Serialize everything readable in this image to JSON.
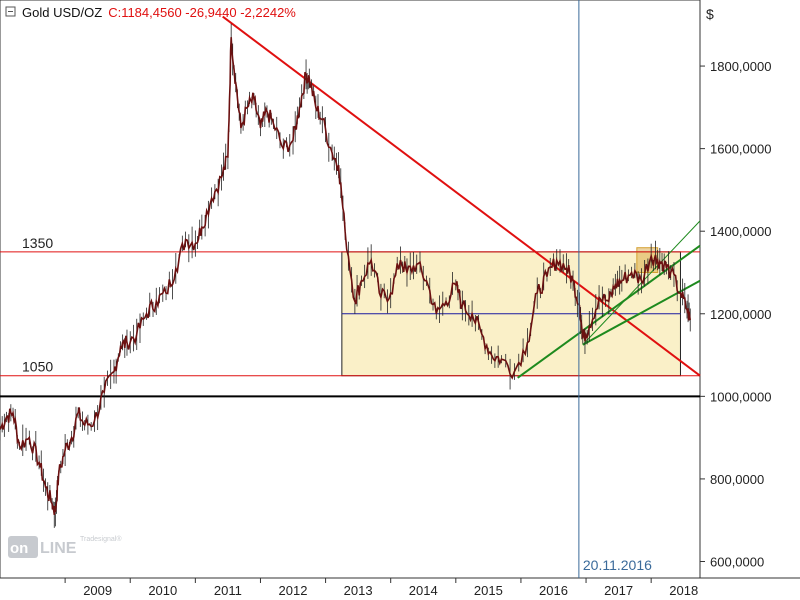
{
  "header": {
    "instrument": "Gold USD/OZ",
    "quote": "C:1184,4560 -26,9440 -2,2242%",
    "colors": {
      "instrument": "#111111",
      "quote": "#e01010"
    }
  },
  "watermark": {
    "text": "Tradesignal online"
  },
  "chart_data": {
    "type": "line",
    "title": "Gold USD/OZ",
    "currency_unit": "$",
    "y_axis": {
      "ylim": [
        560,
        1960
      ],
      "ticks": [
        600,
        800,
        1000,
        1200,
        1400,
        1600,
        1800
      ],
      "tick_labels": [
        "600,0000",
        "800,0000",
        "1000,0000",
        "1200,0000",
        "1400,0000",
        "1600,0000",
        "1800,0000"
      ],
      "position": "right"
    },
    "x_axis": {
      "range": [
        2008.0,
        2018.75
      ],
      "tick_labels": [
        "2009",
        "2010",
        "2011",
        "2012",
        "2013",
        "2014",
        "2015",
        "2016",
        "2017",
        "2018"
      ],
      "tick_years": [
        2009,
        2010,
        2011,
        2012,
        2013,
        2014,
        2015,
        2016,
        2017,
        2018
      ]
    },
    "series": [
      {
        "color": "#6b1010",
        "x": [
          2008.0,
          2008.1,
          2008.2,
          2008.3,
          2008.45,
          2008.6,
          2008.7,
          2008.8,
          2008.85,
          2008.9,
          2009.0,
          2009.1,
          2009.2,
          2009.3,
          2009.45,
          2009.6,
          2009.75,
          2009.85,
          2009.95,
          2010.1,
          2010.25,
          2010.4,
          2010.55,
          2010.7,
          2010.85,
          2011.0,
          2011.1,
          2011.25,
          2011.4,
          2011.5,
          2011.55,
          2011.62,
          2011.7,
          2011.8,
          2011.9,
          2012.0,
          2012.1,
          2012.2,
          2012.35,
          2012.5,
          2012.6,
          2012.7,
          2012.75,
          2012.85,
          2012.95,
          2013.1,
          2013.2,
          2013.3,
          2013.45,
          2013.55,
          2013.7,
          2013.85,
          2014.0,
          2014.15,
          2014.25,
          2014.4,
          2014.55,
          2014.7,
          2014.85,
          2015.0,
          2015.1,
          2015.25,
          2015.4,
          2015.55,
          2015.7,
          2015.9,
          2016.1,
          2016.25,
          2016.4,
          2016.55,
          2016.7,
          2016.8,
          2016.9,
          2016.95,
          2017.05,
          2017.2,
          2017.35,
          2017.45,
          2017.55,
          2017.7,
          2017.85,
          2018.0,
          2018.1,
          2018.2,
          2018.3,
          2018.45,
          2018.55,
          2018.6
        ],
        "values": [
          920,
          950,
          960,
          880,
          900,
          840,
          780,
          740,
          720,
          810,
          870,
          900,
          960,
          930,
          940,
          1010,
          1060,
          1120,
          1130,
          1150,
          1200,
          1230,
          1250,
          1310,
          1380,
          1370,
          1410,
          1480,
          1530,
          1580,
          1870,
          1760,
          1650,
          1700,
          1720,
          1650,
          1690,
          1660,
          1600,
          1620,
          1700,
          1780,
          1770,
          1700,
          1670,
          1590,
          1560,
          1400,
          1230,
          1280,
          1330,
          1240,
          1250,
          1330,
          1300,
          1320,
          1280,
          1200,
          1230,
          1270,
          1220,
          1200,
          1150,
          1100,
          1090,
          1060,
          1130,
          1250,
          1290,
          1330,
          1310,
          1280,
          1220,
          1140,
          1170,
          1240,
          1230,
          1270,
          1280,
          1300,
          1280,
          1340,
          1330,
          1320,
          1300,
          1250,
          1210,
          1185
        ]
      }
    ],
    "reference_lines": [
      {
        "label": "1350",
        "value": 1350,
        "color": "#e01010"
      },
      {
        "label": "1050",
        "value": 1050,
        "color": "#e01010"
      },
      {
        "label": "",
        "value": 1000,
        "color": "#000000"
      },
      {
        "label": "",
        "value": 1200,
        "color": "#1a1aa0"
      }
    ],
    "range_box": {
      "x0": 2013.25,
      "x1": 2018.45,
      "y0": 1050,
      "y1": 1350,
      "fill": "#faf0c8"
    },
    "trend_lines": [
      {
        "color": "#e01010",
        "x0": 2011.42,
        "y0": 1920,
        "x1": 2018.75,
        "y1": 1050
      },
      {
        "color": "#1e8a1e",
        "x0": 2015.95,
        "y0": 1045,
        "x1": 2018.75,
        "y1": 1365
      },
      {
        "color": "#1e8a1e",
        "x0": 2016.95,
        "y0": 1125,
        "x1": 2018.75,
        "y1": 1280
      },
      {
        "color": "#1e8a1e",
        "x0": 2016.95,
        "y0": 1125,
        "x1": 2018.75,
        "y1": 1425
      }
    ],
    "marker": {
      "x": 2016.89,
      "label": "20.11.2016",
      "color": "#3a6a9a"
    },
    "highlight_box": {
      "x0": 2017.78,
      "x1": 2018.1,
      "y0": 1300,
      "y1": 1360,
      "color": "#d4a030"
    }
  }
}
